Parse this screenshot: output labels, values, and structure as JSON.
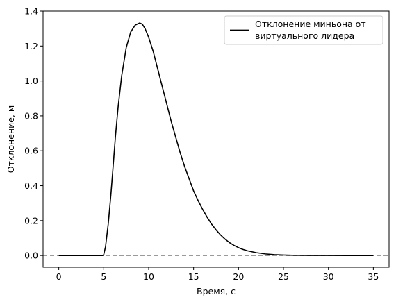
{
  "chart_data": {
    "type": "line",
    "xlabel": "Время, с",
    "ylabel": "Отклонение, м",
    "xlim": [
      -1.75,
      36.75
    ],
    "ylim": [
      -0.067,
      1.4
    ],
    "x_ticks": [
      0,
      5,
      10,
      15,
      20,
      25,
      30,
      35
    ],
    "x_tick_labels": [
      "0",
      "5",
      "10",
      "15",
      "20",
      "25",
      "30",
      "35"
    ],
    "y_ticks": [
      0.0,
      0.2,
      0.4,
      0.6,
      0.8,
      1.0,
      1.2,
      1.4
    ],
    "y_tick_labels": [
      "0.0",
      "0.2",
      "0.4",
      "0.6",
      "0.8",
      "1.0",
      "1.2",
      "1.4"
    ],
    "grid": false,
    "legend_position": "top-right",
    "series": [
      {
        "name": "Отклонение миньона от виртуального лидера",
        "color": "#000000",
        "style": "solid",
        "x": [
          0,
          4.9,
          5.0,
          5.2,
          5.5,
          5.8,
          6.0,
          6.3,
          6.6,
          7.0,
          7.5,
          8.0,
          8.5,
          9.0,
          9.3,
          9.6,
          10.0,
          10.5,
          11.0,
          11.5,
          12.0,
          12.5,
          13.0,
          13.5,
          14.0,
          14.5,
          15.0,
          15.5,
          16.0,
          16.5,
          17.0,
          17.5,
          18.0,
          18.5,
          19.0,
          19.5,
          20.0,
          20.5,
          21.0,
          22.0,
          23.0,
          24.0,
          25.0,
          26.0,
          27.0,
          28.0,
          30.0,
          32.0,
          35.0
        ],
        "y": [
          0.0,
          0.0,
          0.005,
          0.05,
          0.18,
          0.35,
          0.48,
          0.68,
          0.85,
          1.03,
          1.19,
          1.28,
          1.32,
          1.332,
          1.325,
          1.3,
          1.25,
          1.17,
          1.07,
          0.97,
          0.87,
          0.77,
          0.68,
          0.59,
          0.51,
          0.44,
          0.37,
          0.315,
          0.265,
          0.22,
          0.18,
          0.147,
          0.118,
          0.094,
          0.074,
          0.058,
          0.045,
          0.035,
          0.027,
          0.016,
          0.009,
          0.005,
          0.0028,
          0.0015,
          0.0008,
          0.0004,
          0.0001,
          0.0,
          0.0
        ]
      }
    ],
    "reference_lines": [
      {
        "axis": "y",
        "value": 0.0,
        "color": "#8c8c8c",
        "style": "dashed"
      }
    ]
  },
  "legend": {
    "line1": "Отклонение миньона от",
    "line2": "виртуального лидера"
  }
}
